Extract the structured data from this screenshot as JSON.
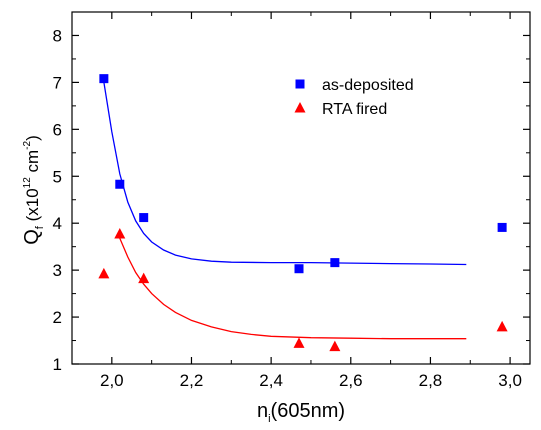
{
  "chart_data": {
    "type": "scatter",
    "title": "",
    "xlabel": {
      "main": "n",
      "sub": "i",
      "rest": "(605nm)"
    },
    "ylabel": {
      "main": "Q",
      "sub": "f",
      "open": " (x10",
      "sup1": "12",
      "mid": " cm",
      "sup2": "-2",
      "close": ")"
    },
    "xlim": [
      1.9,
      3.05
    ],
    "ylim": [
      1,
      8.5
    ],
    "x_ticks": [
      2.0,
      2.2,
      2.4,
      2.6,
      2.8,
      3.0
    ],
    "x_tick_labels": [
      "2,0",
      "2,2",
      "2,4",
      "2,6",
      "2,8",
      "3,0"
    ],
    "y_ticks": [
      1,
      2,
      3,
      4,
      5,
      6,
      7,
      8
    ],
    "y_tick_labels": [
      "1",
      "2",
      "3",
      "4",
      "5",
      "6",
      "7",
      "8"
    ],
    "legend_position": "top-right",
    "series": [
      {
        "name": "as-deposited",
        "marker": "square",
        "color": "#0000ff",
        "points": [
          {
            "x": 1.98,
            "y": 7.08
          },
          {
            "x": 2.02,
            "y": 4.83
          },
          {
            "x": 2.08,
            "y": 4.12
          },
          {
            "x": 2.47,
            "y": 3.03
          },
          {
            "x": 2.56,
            "y": 3.16
          },
          {
            "x": 2.98,
            "y": 3.91
          }
        ],
        "fit": [
          [
            1.98,
            7.0
          ],
          [
            2.0,
            5.95
          ],
          [
            2.02,
            5.05
          ],
          [
            2.04,
            4.45
          ],
          [
            2.06,
            4.05
          ],
          [
            2.08,
            3.78
          ],
          [
            2.1,
            3.6
          ],
          [
            2.13,
            3.43
          ],
          [
            2.16,
            3.32
          ],
          [
            2.2,
            3.24
          ],
          [
            2.25,
            3.19
          ],
          [
            2.3,
            3.17
          ],
          [
            2.4,
            3.16
          ],
          [
            2.5,
            3.16
          ],
          [
            2.6,
            3.15
          ],
          [
            2.7,
            3.14
          ],
          [
            2.8,
            3.13
          ],
          [
            2.89,
            3.12
          ]
        ]
      },
      {
        "name": "RTA fired",
        "marker": "triangle",
        "color": "#ff0000",
        "points": [
          {
            "x": 1.98,
            "y": 2.92
          },
          {
            "x": 2.02,
            "y": 3.77
          },
          {
            "x": 2.08,
            "y": 2.82
          },
          {
            "x": 2.47,
            "y": 1.44
          },
          {
            "x": 2.56,
            "y": 1.37
          },
          {
            "x": 2.98,
            "y": 1.79
          }
        ],
        "fit": [
          [
            2.02,
            3.68
          ],
          [
            2.04,
            3.28
          ],
          [
            2.06,
            2.95
          ],
          [
            2.08,
            2.7
          ],
          [
            2.1,
            2.5
          ],
          [
            2.13,
            2.27
          ],
          [
            2.16,
            2.1
          ],
          [
            2.2,
            1.93
          ],
          [
            2.25,
            1.79
          ],
          [
            2.3,
            1.69
          ],
          [
            2.35,
            1.63
          ],
          [
            2.4,
            1.59
          ],
          [
            2.5,
            1.56
          ],
          [
            2.6,
            1.55
          ],
          [
            2.7,
            1.54
          ],
          [
            2.8,
            1.54
          ],
          [
            2.89,
            1.54
          ]
        ]
      }
    ]
  }
}
